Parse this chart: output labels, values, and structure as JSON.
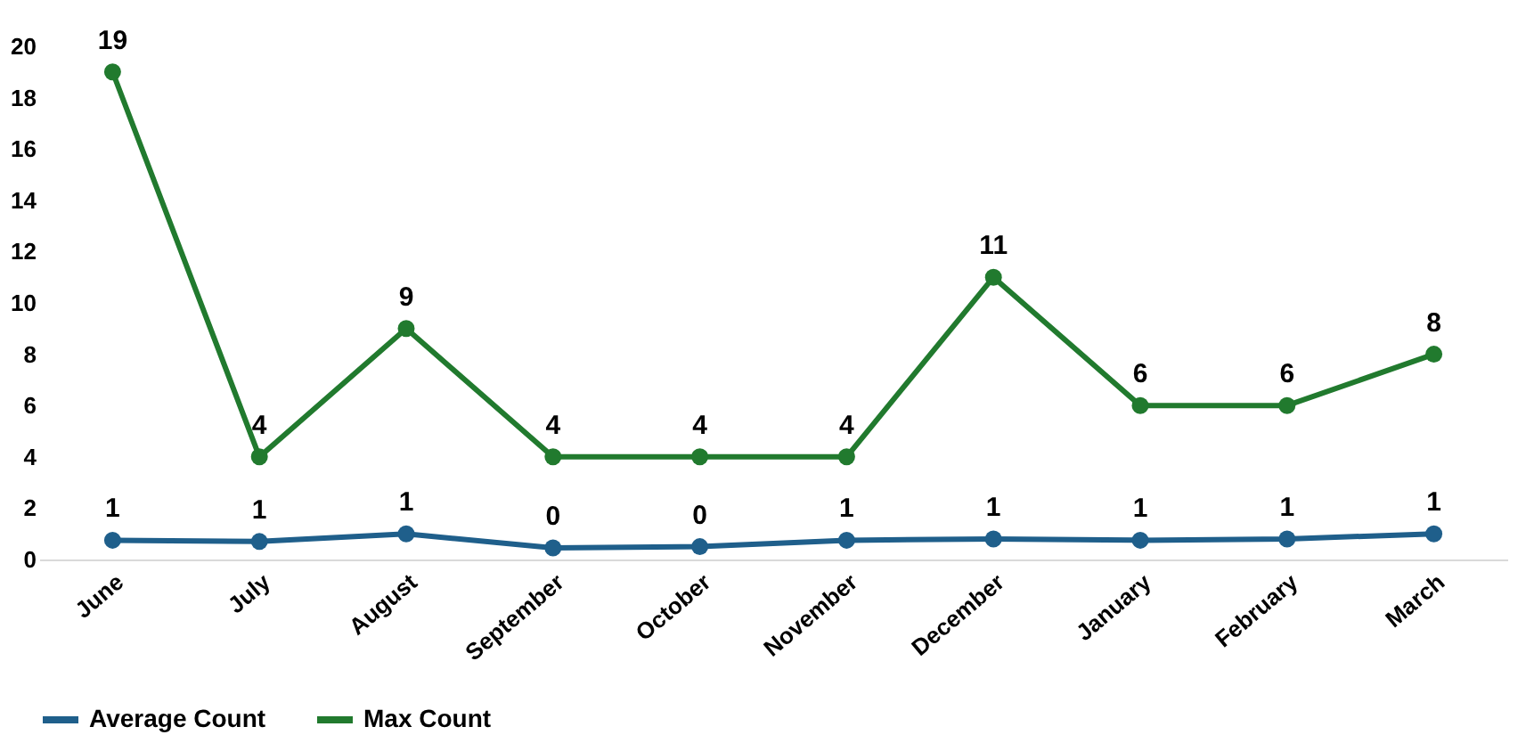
{
  "chart_data": {
    "type": "line",
    "categories": [
      "June",
      "July",
      "August",
      "September",
      "October",
      "November",
      "December",
      "January",
      "February",
      "March"
    ],
    "series": [
      {
        "name": "Average Count",
        "color": "#1f5f8b",
        "values": [
          0.75,
          0.7,
          1.0,
          0.45,
          0.5,
          0.75,
          0.8,
          0.75,
          0.8,
          1.0
        ],
        "value_labels": [
          "1",
          "1",
          "1",
          "0",
          "0",
          "1",
          "1",
          "1",
          "1",
          "1"
        ]
      },
      {
        "name": "Max Count",
        "color": "#217a2e",
        "values": [
          19,
          4,
          9,
          4,
          4,
          4,
          11,
          6,
          6,
          8
        ],
        "value_labels": [
          "19",
          "4",
          "9",
          "4",
          "4",
          "4",
          "11",
          "6",
          "6",
          "8"
        ]
      }
    ],
    "ylim": [
      0,
      20
    ],
    "yticks": [
      0,
      2,
      4,
      6,
      8,
      10,
      12,
      14,
      16,
      18,
      20
    ],
    "grid": false,
    "legend": "bottom",
    "marker": "circle",
    "line_style": "solid"
  }
}
